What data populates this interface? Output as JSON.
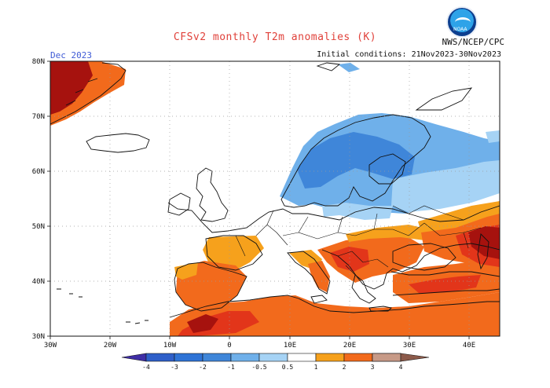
{
  "header": {
    "title": "CFSv2 monthly T2m anomalies (K)",
    "agency": "NWS/NCEP/CPC",
    "logo_text": "NOAA",
    "month": "Dec 2023",
    "initial_conditions": "Initial conditions: 21Nov2023-30Nov2023"
  },
  "map": {
    "lon_range": [
      -30,
      45
    ],
    "lat_range": [
      30,
      80
    ],
    "lon_ticks": [
      "30W",
      "20W",
      "10W",
      "0",
      "10E",
      "20E",
      "30E",
      "40E"
    ],
    "lat_ticks": [
      "80N",
      "70N",
      "60N",
      "50N",
      "40N",
      "30N"
    ],
    "gridlines": true
  },
  "colorbar": {
    "labels": [
      "-4",
      "-3",
      "-2",
      "-1",
      "-0.5",
      "0.5",
      "1",
      "2",
      "3",
      "4"
    ],
    "colors": [
      "#3f2ea6",
      "#2e5fc9",
      "#3f86d9",
      "#6fb0ea",
      "#a6d3f5",
      "#ffffff",
      "#f6a11c",
      "#f26a1c",
      "#e2351a",
      "#a6120e",
      "#c79a87",
      "#8c5a4a"
    ]
  },
  "anomaly_colors": {
    "cool_light": "#a6d3f5",
    "cool_mid": "#6fb0ea",
    "cool_strong": "#3f86d9",
    "warm_light": "#f6a11c",
    "warm_mid": "#f26a1c",
    "warm_strong": "#e2351a",
    "warm_extreme": "#a6120e"
  }
}
